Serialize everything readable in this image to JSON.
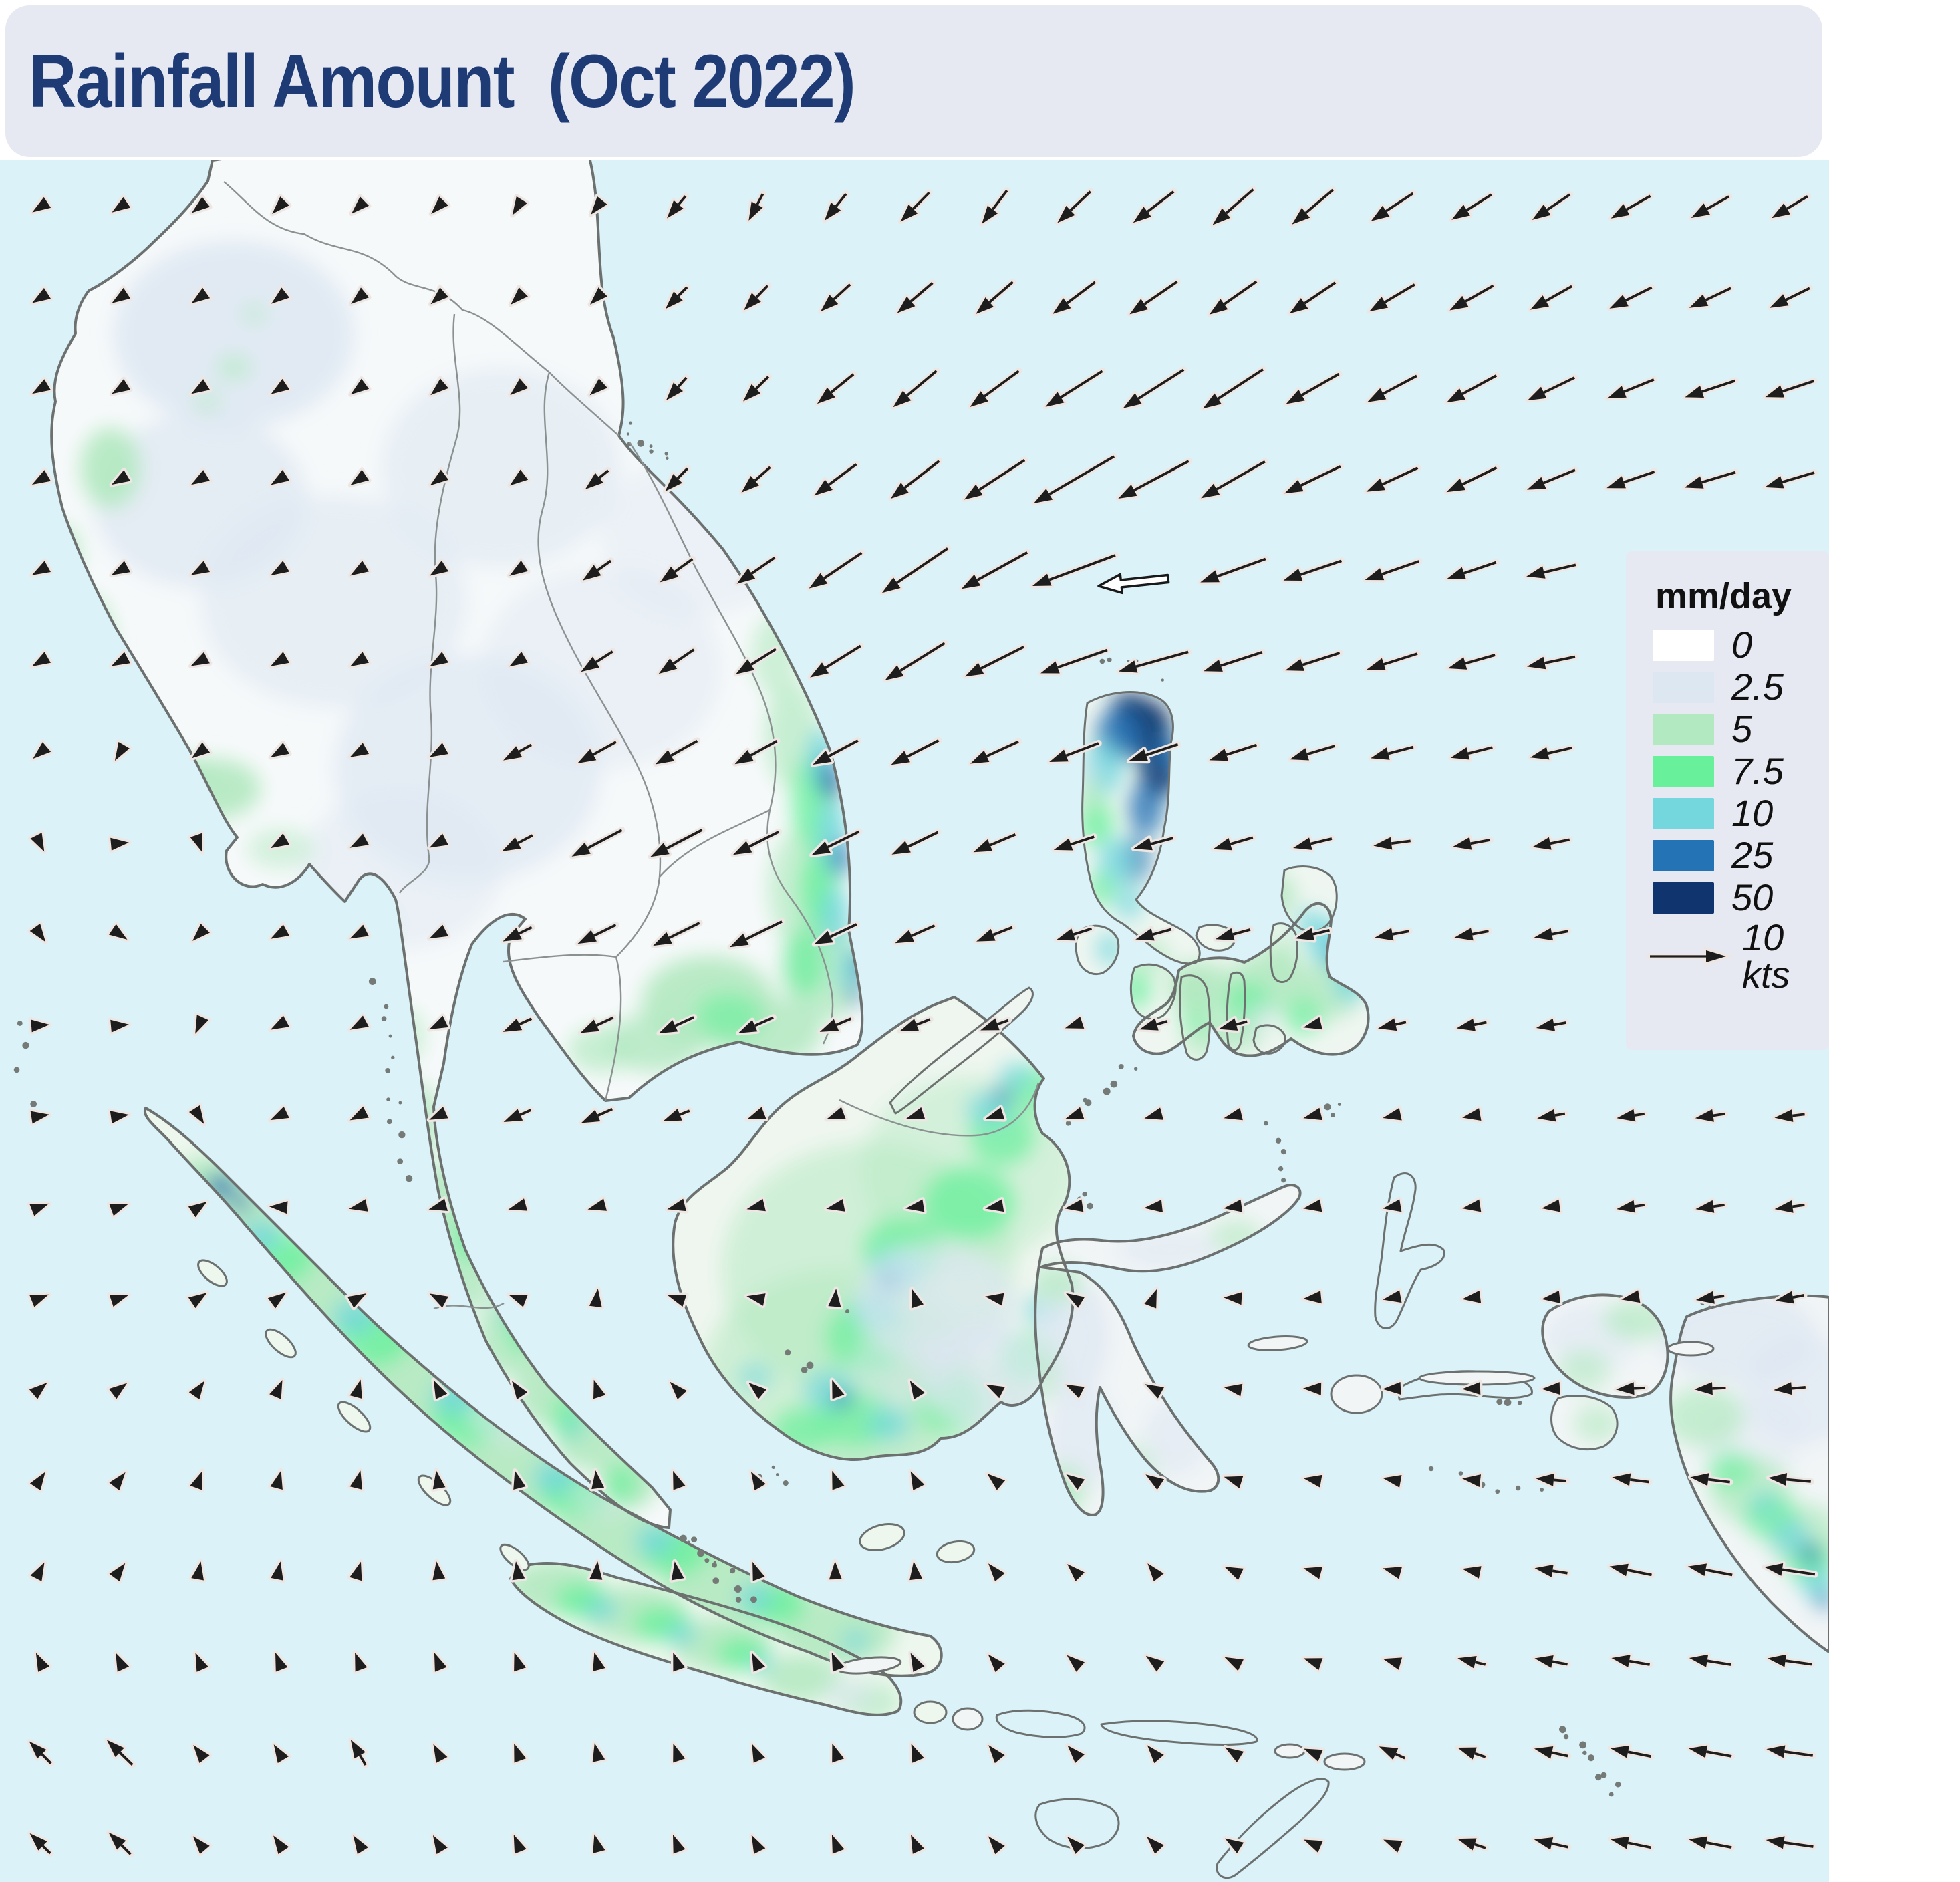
{
  "header": {
    "title": "Rainfall Amount  (Oct 2022)"
  },
  "legend": {
    "title": "mm/day",
    "items": [
      {
        "label": "0",
        "color": "#ffffff"
      },
      {
        "label": "2.5",
        "color": "#dde7f2"
      },
      {
        "label": "5",
        "color": "#b2e9c0"
      },
      {
        "label": "7.5",
        "color": "#68f09b"
      },
      {
        "label": "10",
        "color": "#74d7de"
      },
      {
        "label": "25",
        "color": "#2473b5"
      },
      {
        "label": "50",
        "color": "#10356e"
      }
    ],
    "wind_reference": {
      "label": "10 kts"
    }
  },
  "map": {
    "ocean_color": "#DBF2F8",
    "wind_arrow_color": "#1d1d1d"
  }
}
